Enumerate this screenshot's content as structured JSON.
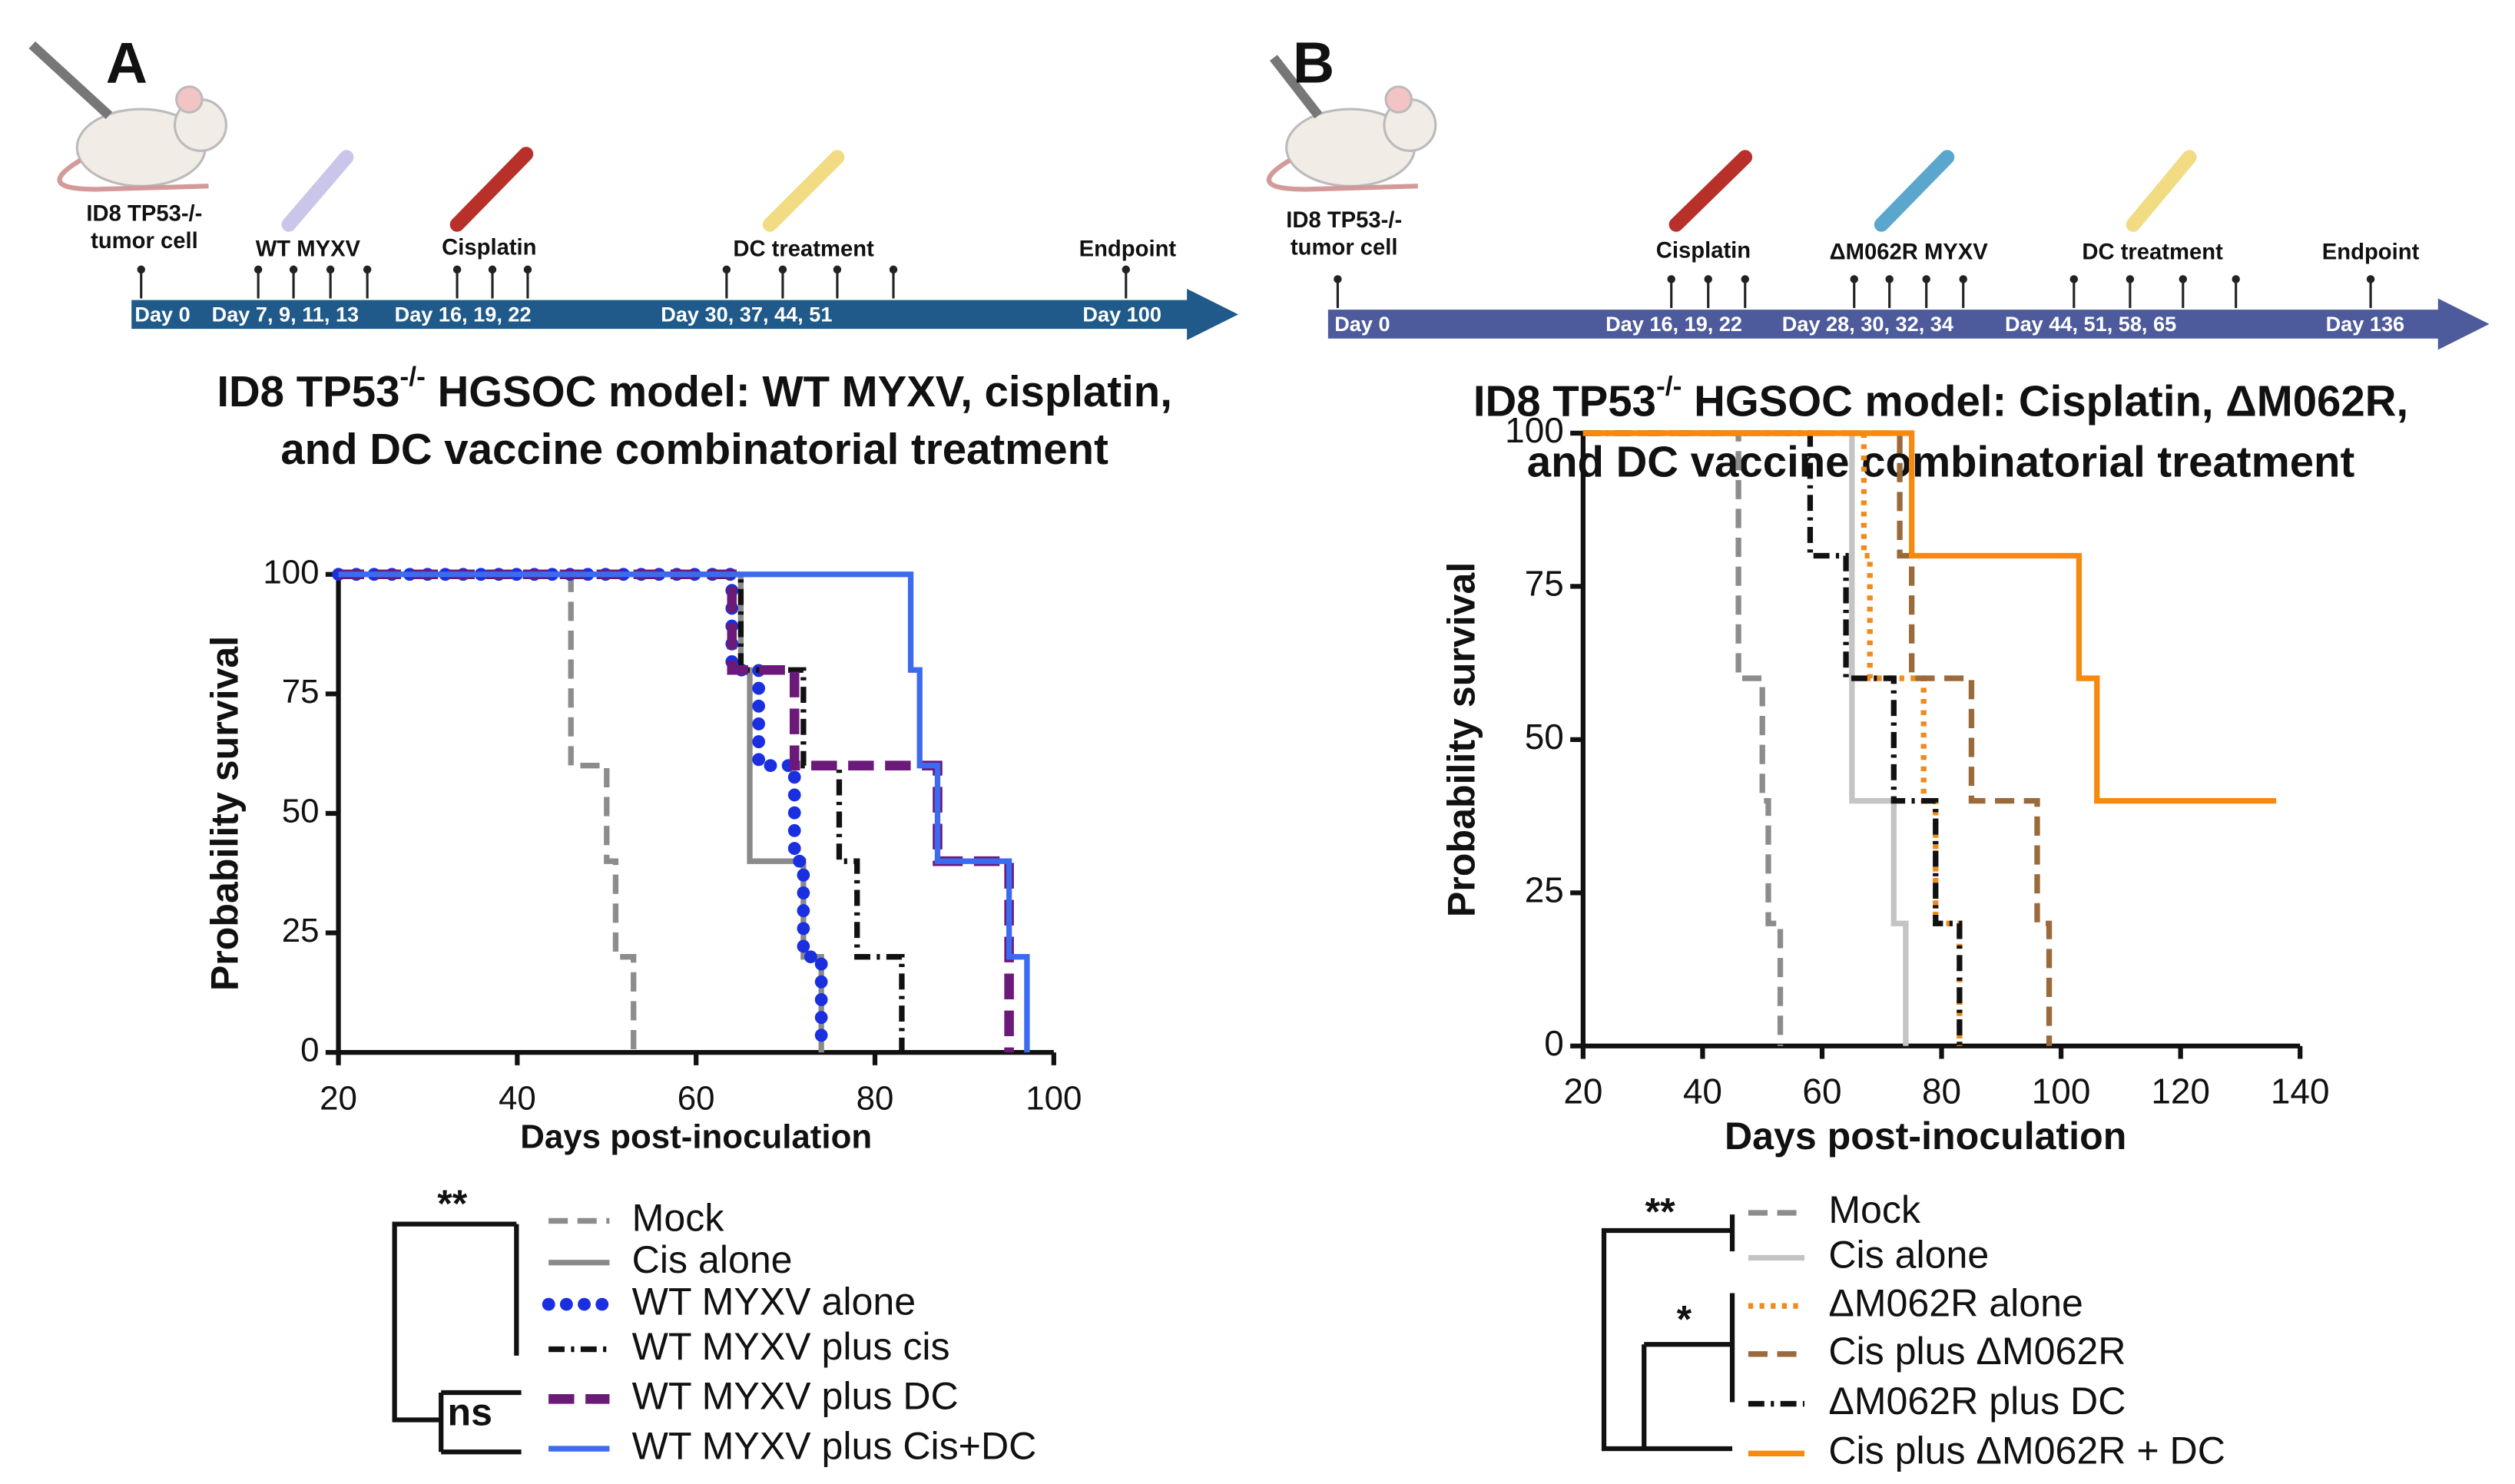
{
  "timelines": [
    {
      "panel": "A",
      "top_labels": [
        "ID8 TP53-/-",
        "tumor cell",
        "WT MYXV",
        "Cisplatin",
        "DC treatment",
        "Endpoint"
      ],
      "day_labels": [
        "Day 0",
        "Day 7, 9, 11, 13",
        "Day 16, 19, 22",
        "Day 30,   37,   44,   51",
        "Day 100"
      ]
    },
    {
      "panel": "B",
      "top_labels": [
        "ID8 TP53-/-",
        "tumor cell",
        "Cisplatin",
        "ΔM062R MYXV",
        "DC treatment",
        "Endpoint"
      ],
      "day_labels": [
        "Day 0",
        "Day 16, 19, 22",
        "Day 28, 30, 32, 34",
        "Day 44,   51,   58,   65",
        "Day 136"
      ]
    }
  ],
  "chart_data": [
    {
      "type": "survival",
      "title": [
        "ID8 TP53",
        "-/-",
        " HGSOC model: WT MYXV, cisplatin,",
        "and DC vaccine combinatorial treatment"
      ],
      "xlabel": "Days post-inoculation",
      "ylabel": "Probability survival",
      "xlim": [
        20,
        100
      ],
      "ylim": [
        0,
        100
      ],
      "xticks": [
        20,
        40,
        60,
        80,
        100
      ],
      "yticks": [
        0,
        25,
        50,
        75,
        100
      ],
      "series": [
        {
          "name": "Mock",
          "color": "#8c8c8c",
          "style": "dashed",
          "x": [
            20,
            46,
            50,
            51,
            53
          ],
          "values": [
            100,
            60,
            40,
            20,
            0
          ]
        },
        {
          "name": "Cis alone",
          "color": "#8a8a8a",
          "style": "solid",
          "x": [
            20,
            65,
            66,
            72,
            74
          ],
          "values": [
            100,
            80,
            40,
            20,
            0
          ]
        },
        {
          "name": "WT MYXV alone",
          "color": "#1a2fe0",
          "style": "dotted",
          "x": [
            20,
            64,
            67,
            71,
            72,
            74
          ],
          "values": [
            100,
            80,
            60,
            40,
            20,
            0
          ]
        },
        {
          "name": "WT MYXV plus cis",
          "color": "#111111",
          "style": "dashdot",
          "x": [
            20,
            65,
            72,
            76,
            78,
            83
          ],
          "values": [
            100,
            80,
            60,
            40,
            20,
            0
          ]
        },
        {
          "name": "WT MYXV plus DC",
          "color": "#6b1a7a",
          "style": "heavydash",
          "x": [
            20,
            64,
            71,
            87,
            95
          ],
          "values": [
            100,
            80,
            60,
            40,
            0
          ]
        },
        {
          "name": "WT MYXV plus Cis+DC",
          "color": "#3d6bf0",
          "style": "solid",
          "x": [
            20,
            84,
            85,
            87,
            95,
            97
          ],
          "values": [
            100,
            80,
            60,
            40,
            20,
            0
          ]
        }
      ],
      "annotations": [
        "**",
        "ns"
      ]
    },
    {
      "type": "survival",
      "title": [
        "ID8 TP53",
        "-/-",
        " HGSOC model: Cisplatin, ΔM062R,",
        "and DC vaccine combinatorial treatment"
      ],
      "xlabel": "Days post-inoculation",
      "ylabel": "Probability survival",
      "xlim": [
        20,
        140
      ],
      "ylim": [
        0,
        100
      ],
      "xticks": [
        20,
        40,
        60,
        80,
        100,
        120,
        140
      ],
      "yticks": [
        0,
        25,
        50,
        75,
        100
      ],
      "series": [
        {
          "name": "Mock",
          "color": "#8c8c8c",
          "style": "dashed",
          "x": [
            20,
            46,
            50,
            51,
            53
          ],
          "values": [
            100,
            60,
            40,
            20,
            0
          ]
        },
        {
          "name": "Cis alone",
          "color": "#c4c4c4",
          "style": "solid",
          "x": [
            20,
            65,
            72,
            74
          ],
          "values": [
            100,
            40,
            20,
            0
          ]
        },
        {
          "name": "ΔM062R alone",
          "color": "#f08a1c",
          "style": "dotted2",
          "x": [
            20,
            67,
            68,
            77,
            79,
            83
          ],
          "values": [
            100,
            80,
            60,
            40,
            20,
            0
          ]
        },
        {
          "name": "Cis plus ΔM062R",
          "color": "#9a6a3a",
          "style": "dashed",
          "x": [
            20,
            73,
            75,
            85,
            96,
            98
          ],
          "values": [
            100,
            80,
            60,
            40,
            20,
            0
          ]
        },
        {
          "name": "ΔM062R plus DC",
          "color": "#111111",
          "style": "dashdot",
          "x": [
            20,
            58,
            64,
            72,
            79,
            83
          ],
          "values": [
            100,
            80,
            60,
            40,
            20,
            0
          ]
        },
        {
          "name": "Cis plus ΔM062R + DC",
          "color": "#f7890f",
          "style": "solid",
          "x": [
            20,
            75,
            103,
            106,
            136
          ],
          "values": [
            100,
            80,
            60,
            40,
            40
          ]
        }
      ],
      "annotations": [
        "**",
        "*"
      ]
    }
  ]
}
